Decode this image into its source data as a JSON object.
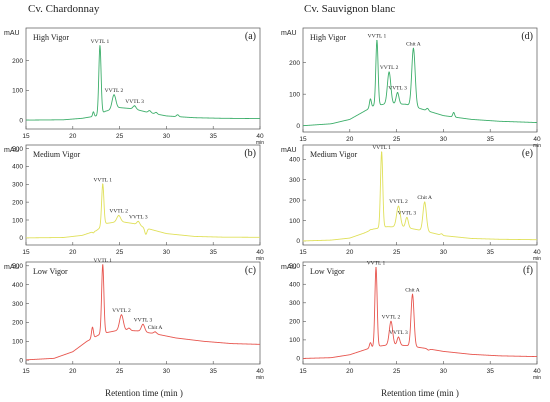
{
  "figure": {
    "col_titles": [
      "Cv. Chardonnay",
      "Cv. Sauvignon blanc"
    ],
    "xlabel": "Retention time (min )",
    "x_unit": "min",
    "y_unit": "mAU"
  },
  "chart_data": [
    {
      "type": "line",
      "letter": "(a)",
      "title": "High Vigor",
      "color": "#3cae6a",
      "xlim": [
        15,
        40
      ],
      "ylim": [
        -30,
        310
      ],
      "yticks": [
        0,
        100,
        200
      ],
      "baseline": [
        [
          15,
          0
        ],
        [
          19,
          1
        ],
        [
          21,
          6
        ],
        [
          22.5,
          14
        ],
        [
          23.5,
          30
        ],
        [
          25,
          42
        ],
        [
          26.5,
          38
        ],
        [
          28,
          26
        ],
        [
          30,
          14
        ],
        [
          33,
          8
        ],
        [
          36,
          6
        ],
        [
          40,
          5
        ]
      ],
      "peaks": [
        {
          "label": "VVTL 1",
          "x": 22.9,
          "y": 250,
          "w": 0.12
        },
        {
          "label": "VVTL 2",
          "x": 24.4,
          "y": 85,
          "w": 0.2
        },
        {
          "label": "VVTL 3",
          "x": 26.6,
          "y": 48,
          "w": 0.16
        }
      ],
      "minor": [
        {
          "x": 22.2,
          "y": 28,
          "w": 0.08
        },
        {
          "x": 28.2,
          "y": 32,
          "w": 0.14
        },
        {
          "x": 28.9,
          "y": 26,
          "w": 0.12
        },
        {
          "x": 31.2,
          "y": 18,
          "w": 0.12
        }
      ]
    },
    {
      "type": "line",
      "letter": "(b)",
      "title": "Medium Vigor",
      "color": "#e0e05a",
      "xlim": [
        15,
        40
      ],
      "ylim": [
        -40,
        520
      ],
      "yticks": [
        0,
        100,
        200,
        300,
        400,
        500
      ],
      "baseline": [
        [
          15,
          0
        ],
        [
          19,
          2
        ],
        [
          21,
          14
        ],
        [
          22.5,
          40
        ],
        [
          23.5,
          80
        ],
        [
          25,
          92
        ],
        [
          26.5,
          80
        ],
        [
          28,
          52
        ],
        [
          30,
          24
        ],
        [
          33,
          8
        ],
        [
          36,
          4
        ],
        [
          40,
          3
        ]
      ],
      "peaks": [
        {
          "label": "VVTL 1",
          "x": 23.2,
          "y": 300,
          "w": 0.12
        },
        {
          "label": "VVTL 2",
          "x": 24.9,
          "y": 125,
          "w": 0.2
        },
        {
          "label": "VVTL 3",
          "x": 27.0,
          "y": 92,
          "w": 0.16
        }
      ],
      "minor": [
        {
          "x": 22.2,
          "y": 28,
          "w": 0.08
        },
        {
          "x": 27.8,
          "y": 20,
          "w": 0.12
        }
      ]
    },
    {
      "type": "line",
      "letter": "(c)",
      "title": "Low Vigor",
      "color": "#e7554e",
      "xlim": [
        15,
        40
      ],
      "ylim": [
        -20,
        520
      ],
      "yticks": [
        0,
        100,
        200,
        300,
        400,
        500
      ],
      "baseline": [
        [
          15,
          2
        ],
        [
          18,
          10
        ],
        [
          20,
          45
        ],
        [
          21.5,
          100
        ],
        [
          23,
          140
        ],
        [
          25,
          160
        ],
        [
          27,
          155
        ],
        [
          29,
          138
        ],
        [
          31,
          118
        ],
        [
          34,
          100
        ],
        [
          37,
          88
        ],
        [
          40,
          84
        ]
      ],
      "peaks": [
        {
          "label": "VVTL 1",
          "x": 23.2,
          "y": 505,
          "w": 0.12
        },
        {
          "label": "VVTL 2",
          "x": 25.2,
          "y": 240,
          "w": 0.2
        },
        {
          "label": "VVTL 3",
          "x": 27.5,
          "y": 190,
          "w": 0.18
        },
        {
          "label": "Chit A",
          "x": 28.8,
          "y": 150,
          "w": 0.16
        }
      ],
      "minor": [
        {
          "x": 22.1,
          "y": 175,
          "w": 0.1
        },
        {
          "x": 26.0,
          "y": 170,
          "w": 0.15
        }
      ]
    },
    {
      "type": "line",
      "letter": "(d)",
      "title": "High Vigor",
      "color": "#3cae6a",
      "xlim": [
        15,
        40
      ],
      "ylim": [
        -20,
        310
      ],
      "yticks": [
        0,
        100,
        200
      ],
      "baseline": [
        [
          15,
          0
        ],
        [
          18,
          6
        ],
        [
          20,
          20
        ],
        [
          21.5,
          45
        ],
        [
          22.5,
          62
        ],
        [
          24,
          70
        ],
        [
          26,
          68
        ],
        [
          28,
          50
        ],
        [
          30,
          32
        ],
        [
          33,
          20
        ],
        [
          36,
          14
        ],
        [
          40,
          10
        ]
      ],
      "peaks": [
        {
          "label": "VVTL 1",
          "x": 22.9,
          "y": 270,
          "w": 0.12
        },
        {
          "label": "VVTL 2",
          "x": 24.2,
          "y": 170,
          "w": 0.18
        },
        {
          "label": "VVTL 3",
          "x": 25.1,
          "y": 105,
          "w": 0.15
        },
        {
          "label": "Chit A",
          "x": 26.8,
          "y": 245,
          "w": 0.18
        }
      ],
      "minor": [
        {
          "x": 22.2,
          "y": 85,
          "w": 0.1
        },
        {
          "x": 28.3,
          "y": 55,
          "w": 0.12
        },
        {
          "x": 31.1,
          "y": 42,
          "w": 0.1
        }
      ]
    },
    {
      "type": "line",
      "letter": "(e)",
      "title": "Medium Vigor",
      "color": "#e0e05a",
      "xlim": [
        15,
        40
      ],
      "ylim": [
        -20,
        470
      ],
      "yticks": [
        0,
        100,
        200,
        300,
        400
      ],
      "baseline": [
        [
          15,
          0
        ],
        [
          18,
          4
        ],
        [
          20,
          14
        ],
        [
          21.5,
          38
        ],
        [
          22.5,
          58
        ],
        [
          24,
          70
        ],
        [
          26,
          66
        ],
        [
          28,
          48
        ],
        [
          30,
          26
        ],
        [
          33,
          12
        ],
        [
          36,
          8
        ],
        [
          40,
          6
        ]
      ],
      "peaks": [
        {
          "label": "VVTL 1",
          "x": 23.4,
          "y": 435,
          "w": 0.12
        },
        {
          "label": "VVTL 2",
          "x": 25.2,
          "y": 170,
          "w": 0.2
        },
        {
          "label": "VVTL 3",
          "x": 26.1,
          "y": 115,
          "w": 0.15
        },
        {
          "label": "Chit A",
          "x": 28.0,
          "y": 190,
          "w": 0.18
        }
      ],
      "minor": [
        {
          "x": 22.2,
          "y": 55,
          "w": 0.1
        },
        {
          "x": 29.8,
          "y": 35,
          "w": 0.12
        }
      ]
    },
    {
      "type": "line",
      "letter": "(f)",
      "title": "Low Vigor",
      "color": "#e7554e",
      "xlim": [
        15,
        40
      ],
      "ylim": [
        -30,
        520
      ],
      "yticks": [
        0,
        100,
        200,
        300,
        400,
        500
      ],
      "baseline": [
        [
          15,
          0
        ],
        [
          18,
          4
        ],
        [
          20,
          20
        ],
        [
          21.5,
          45
        ],
        [
          22.5,
          62
        ],
        [
          24,
          72
        ],
        [
          26,
          70
        ],
        [
          28,
          55
        ],
        [
          30,
          38
        ],
        [
          33,
          22
        ],
        [
          36,
          14
        ],
        [
          40,
          10
        ]
      ],
      "peaks": [
        {
          "label": "VVTL 1",
          "x": 22.8,
          "y": 490,
          "w": 0.12
        },
        {
          "label": "VVTL 2",
          "x": 24.4,
          "y": 200,
          "w": 0.18
        },
        {
          "label": "VVTL 3",
          "x": 25.2,
          "y": 115,
          "w": 0.15
        },
        {
          "label": "Chit A",
          "x": 26.7,
          "y": 345,
          "w": 0.16
        }
      ],
      "minor": [
        {
          "x": 22.2,
          "y": 85,
          "w": 0.1
        },
        {
          "x": 28.4,
          "y": 45,
          "w": 0.12
        }
      ]
    }
  ]
}
